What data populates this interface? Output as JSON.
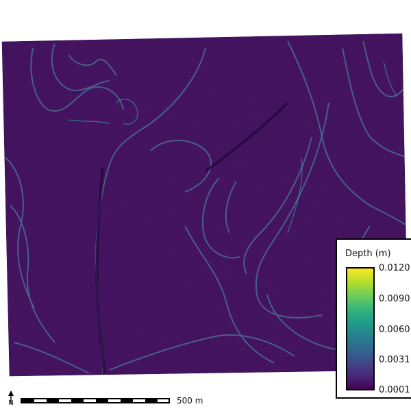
{
  "map": {
    "colors": {
      "background": "#3a0d55",
      "contour": "#4a7a96",
      "contour_bright": "#2fb5a0",
      "shadow": "#22063a"
    }
  },
  "legend": {
    "title": "Depth (m)",
    "ticks": [
      "0.0120",
      "0.0090",
      "0.0060",
      "0.0031",
      "0.0001"
    ],
    "colormap": "viridis"
  },
  "scale_bar": {
    "label": "500 m"
  },
  "north_arrow": {
    "label": "N"
  }
}
